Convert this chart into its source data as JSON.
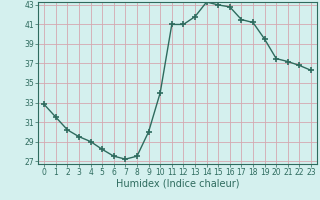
{
  "x": [
    0,
    1,
    2,
    3,
    4,
    5,
    6,
    7,
    8,
    9,
    10,
    11,
    12,
    13,
    14,
    15,
    16,
    17,
    18,
    19,
    20,
    21,
    22,
    23
  ],
  "y": [
    32.8,
    31.5,
    30.2,
    29.5,
    29.0,
    28.2,
    27.5,
    27.2,
    27.5,
    30.0,
    34.0,
    41.0,
    41.0,
    41.8,
    43.3,
    43.0,
    42.8,
    41.5,
    41.2,
    39.5,
    37.5,
    37.2,
    36.8,
    36.3
  ],
  "line_color": "#2e6b5e",
  "marker": "+",
  "markersize": 4,
  "linewidth": 1.0,
  "bg_color": "#d4f0ee",
  "grid_color": "#d4a8b0",
  "xlabel": "Humidex (Indice chaleur)",
  "ylim": [
    27,
    43
  ],
  "xlim": [
    -0.5,
    23.5
  ],
  "yticks": [
    27,
    29,
    31,
    33,
    35,
    37,
    39,
    41,
    43
  ],
  "xticks": [
    0,
    1,
    2,
    3,
    4,
    5,
    6,
    7,
    8,
    9,
    10,
    11,
    12,
    13,
    14,
    15,
    16,
    17,
    18,
    19,
    20,
    21,
    22,
    23
  ],
  "tick_label_fontsize": 5.5,
  "xlabel_fontsize": 7.0,
  "tick_color": "#2e6b5e",
  "spine_color": "#2e6b5e"
}
